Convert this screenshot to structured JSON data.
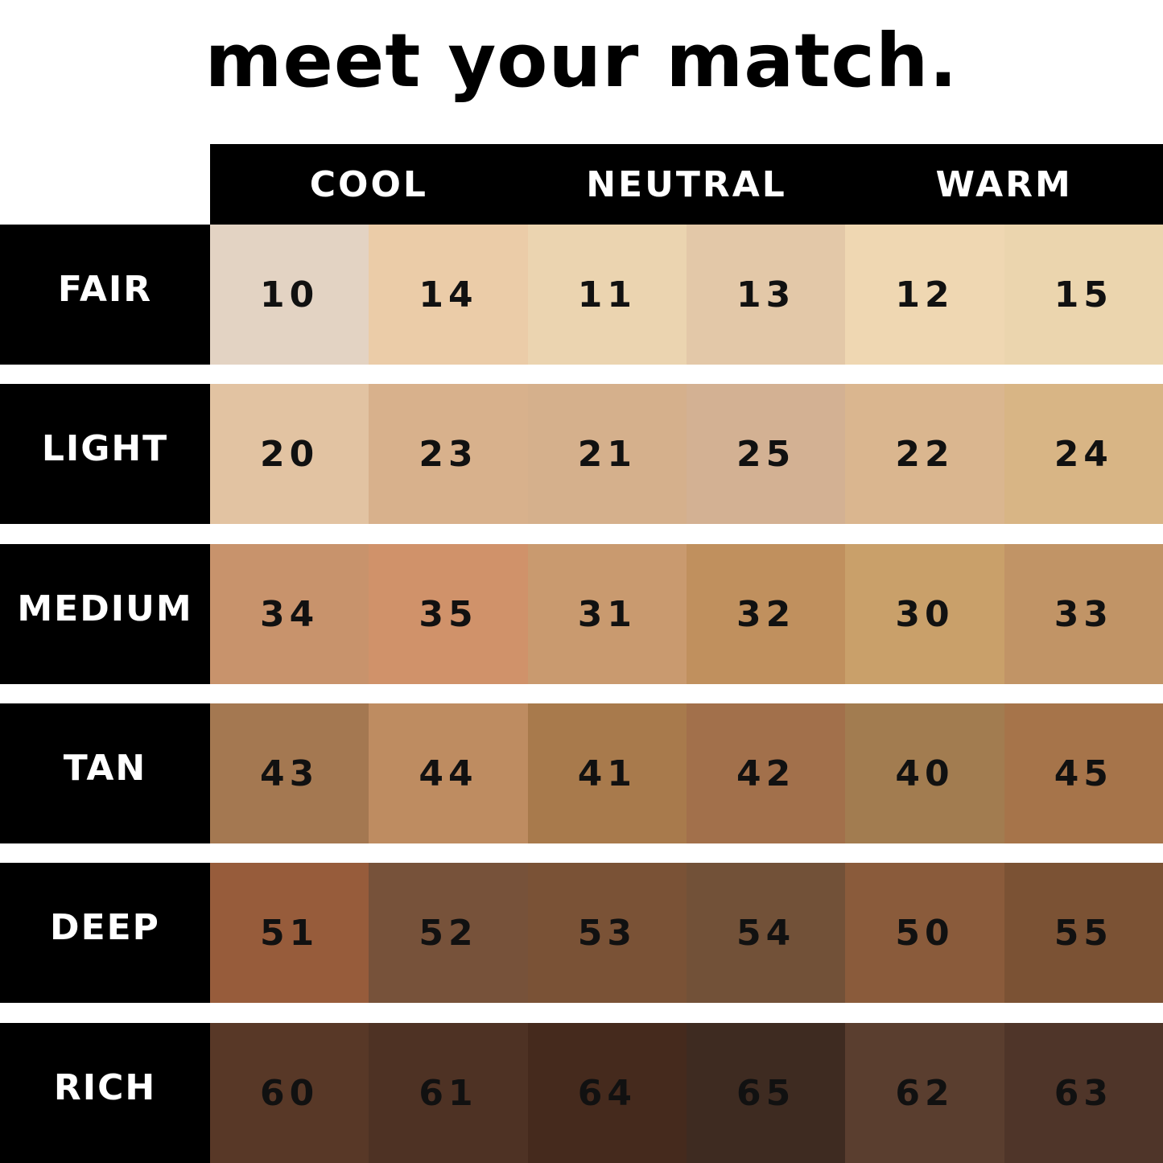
{
  "title": "meet your match.",
  "columns": [
    "COOL",
    "NEUTRAL",
    "WARM"
  ],
  "rows": [
    {
      "label": "FAIR",
      "shades": [
        "10",
        "14",
        "11",
        "13",
        "12",
        "15"
      ],
      "colors": [
        "#e3d3c3",
        "#ebcca8",
        "#ebd4b0",
        "#e3c8a8",
        "#efd7b2",
        "#ebd5ae"
      ]
    },
    {
      "label": "LIGHT",
      "shades": [
        "20",
        "23",
        "21",
        "25",
        "22",
        "24"
      ],
      "colors": [
        "#e2c3a2",
        "#d8b18c",
        "#d5b08c",
        "#d3b193",
        "#dab68f",
        "#d8b585"
      ]
    },
    {
      "label": "MEDIUM",
      "shades": [
        "34",
        "35",
        "31",
        "32",
        "30",
        "33"
      ],
      "colors": [
        "#c8936c",
        "#d0926a",
        "#c99a6f",
        "#c0905e",
        "#c9a06a",
        "#c19466"
      ]
    },
    {
      "label": "TAN",
      "shades": [
        "43",
        "44",
        "41",
        "42",
        "40",
        "45"
      ],
      "colors": [
        "#a47851",
        "#be8c61",
        "#a87a4c",
        "#a2704b",
        "#a27c50",
        "#a6744a"
      ]
    },
    {
      "label": "DEEP",
      "shades": [
        "51",
        "52",
        "53",
        "54",
        "50",
        "55"
      ],
      "colors": [
        "#975c3b",
        "#77523a",
        "#7a5236",
        "#725138",
        "#8a5b3b",
        "#7b5234"
      ]
    },
    {
      "label": "RICH",
      "shades": [
        "60",
        "61",
        "64",
        "65",
        "62",
        "63"
      ],
      "colors": [
        "#583827",
        "#4e3224",
        "#452a1d",
        "#3e2b21",
        "#5a3e2f",
        "#4f3529"
      ]
    }
  ]
}
